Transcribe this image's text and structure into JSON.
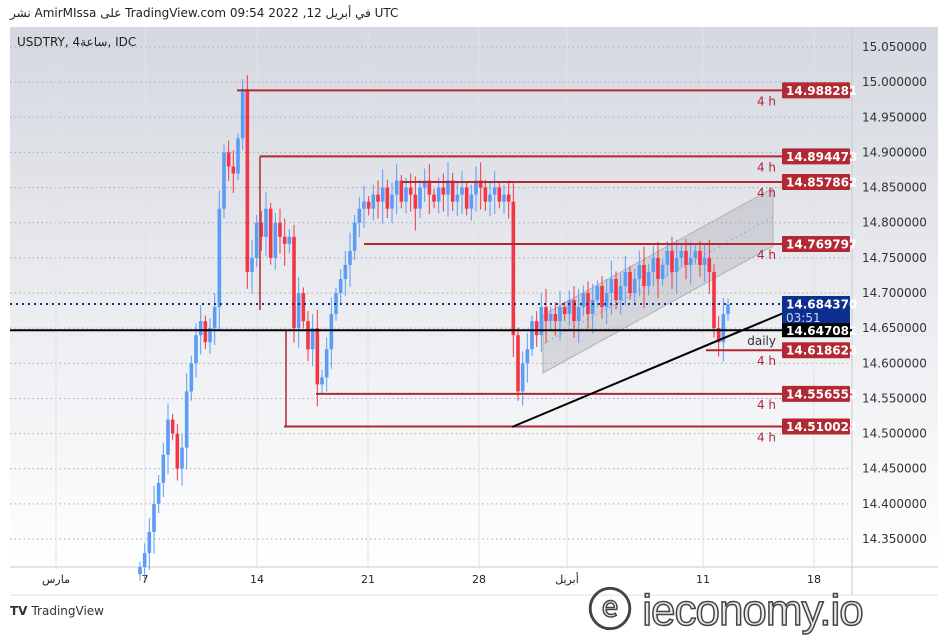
{
  "header": {
    "published": "نشر AmirMIssa على TradingView.com في أبريل 12, 2022 09:54 UTC"
  },
  "symbol_legend": "USDTRY, 4ساعة, IDC",
  "footer": {
    "brand": "TradingView"
  },
  "watermark": "ieconomy.io",
  "colors": {
    "up": "#5b9cf6",
    "down": "#f23645",
    "level": "#b22833",
    "price_blue": "#0d2f8f",
    "bg_top": "#d5d8e0",
    "bg_bottom": "#ffffff"
  },
  "chart_data": {
    "type": "candlestick",
    "symbol": "USDTRY",
    "interval": "4h",
    "ylim": [
      14.31,
      15.08
    ],
    "y_ticks": [
      "15.050000",
      "15.000000",
      "14.950000",
      "14.900000",
      "14.850000",
      "14.800000",
      "14.750000",
      "14.700000",
      "14.650000",
      "14.600000",
      "14.550000",
      "14.500000",
      "14.450000",
      "14.400000",
      "14.350000"
    ],
    "x_ticks": [
      "مارس",
      "7",
      "14",
      "21",
      "28",
      "أبريل",
      "11",
      "18"
    ],
    "closes": [
      14.31,
      14.33,
      14.36,
      14.4,
      14.43,
      14.47,
      14.52,
      14.5,
      14.45,
      14.48,
      14.56,
      14.6,
      14.64,
      14.66,
      14.63,
      14.65,
      14.68,
      14.82,
      14.9,
      14.88,
      14.87,
      14.92,
      14.99,
      14.73,
      14.75,
      14.8,
      14.78,
      14.82,
      14.75,
      14.8,
      14.78,
      14.77,
      14.78,
      14.65,
      14.7,
      14.66,
      14.62,
      14.65,
      14.57,
      14.58,
      14.62,
      14.67,
      14.7,
      14.72,
      14.74,
      14.76,
      14.8,
      14.82,
      14.83,
      14.82,
      14.84,
      14.83,
      14.85,
      14.82,
      14.84,
      14.86,
      14.83,
      14.85,
      14.84,
      14.82,
      14.85,
      14.86,
      14.84,
      14.83,
      14.85,
      14.84,
      14.86,
      14.83,
      14.84,
      14.85,
      14.82,
      14.84,
      14.86,
      14.85,
      14.83,
      14.84,
      14.85,
      14.83,
      14.84,
      14.83,
      14.64,
      14.56,
      14.6,
      14.62,
      14.66,
      14.64,
      14.68,
      14.66,
      14.67,
      14.66,
      14.68,
      14.67,
      14.69,
      14.66,
      14.68,
      14.7,
      14.67,
      14.69,
      14.71,
      14.68,
      14.7,
      14.72,
      14.69,
      14.71,
      14.73,
      14.7,
      14.72,
      14.74,
      14.71,
      14.73,
      14.75,
      14.72,
      14.74,
      14.76,
      14.73,
      14.75,
      14.76,
      14.74,
      14.75,
      14.76,
      14.74,
      14.75,
      14.73,
      14.65,
      14.63,
      14.67,
      14.684
    ],
    "levels": [
      {
        "value": 14.988281,
        "label": "14.988281",
        "tf": "4 h"
      },
      {
        "value": 14.894473,
        "label": "14.894473",
        "tf": "4 h"
      },
      {
        "value": 14.857862,
        "label": "14.857862",
        "tf": "4 h"
      },
      {
        "value": 14.769797,
        "label": "14.769797",
        "tf": "4 h"
      },
      {
        "value": 14.618623,
        "label": "14.618623",
        "tf": "4 h"
      },
      {
        "value": 14.556555,
        "label": "14.556555",
        "tf": "4 h"
      },
      {
        "value": 14.510024,
        "label": "14.510024",
        "tf": "4 h"
      }
    ],
    "daily_level": {
      "value": 14.647082,
      "label": "14.647082",
      "tf": "daily"
    },
    "last_price": {
      "value": 14.68437,
      "label": "14.684370",
      "countdown": "03:51"
    }
  }
}
